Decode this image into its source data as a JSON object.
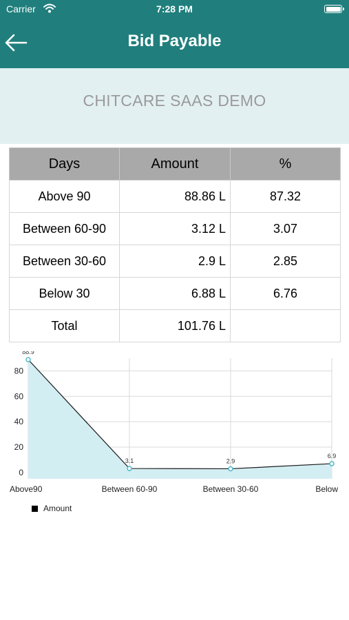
{
  "status": {
    "carrier": "Carrier",
    "time": "7:28 PM"
  },
  "header": {
    "title": "Bid Payable"
  },
  "company": "CHITCARE SAAS DEMO",
  "table": {
    "headers": [
      "Days",
      "Amount",
      "%"
    ],
    "rows": [
      {
        "days": "Above 90",
        "amount": "88.86 L",
        "pct": "87.32"
      },
      {
        "days": "Between 60-90",
        "amount": "3.12 L",
        "pct": "3.07"
      },
      {
        "days": "Between 30-60",
        "amount": "2.9 L",
        "pct": "2.85"
      },
      {
        "days": "Below 30",
        "amount": "6.88 L",
        "pct": "6.76"
      },
      {
        "days": "Total",
        "amount": "101.76 L",
        "pct": ""
      }
    ]
  },
  "chart_data": {
    "type": "area",
    "categories": [
      "Above90",
      "Between 60-90",
      "Between 30-60",
      "Below"
    ],
    "series": [
      {
        "name": "Amount",
        "values": [
          88.9,
          3.1,
          2.9,
          6.9
        ]
      }
    ],
    "data_labels": [
      "88.9",
      "3.1",
      "2.9",
      "6.9"
    ],
    "yticks": [
      "0",
      "20",
      "40",
      "60",
      "80"
    ],
    "ylim": [
      -5,
      90
    ],
    "grid": true,
    "legend": "bottom-left",
    "colors": {
      "line": "#1a1a1a",
      "fill": "#d3eef3",
      "marker": "#4fb9c8"
    }
  }
}
